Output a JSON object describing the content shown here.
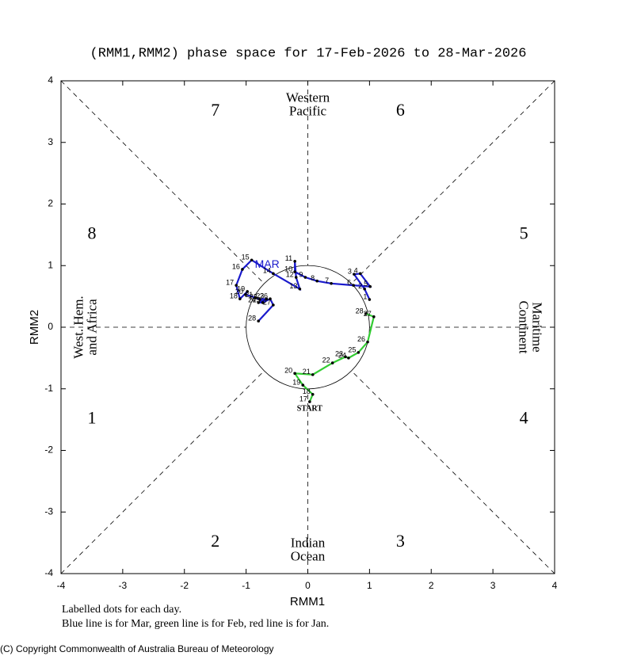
{
  "chart_data": {
    "type": "phase",
    "title": "(RMM1,RMM2) phase space for 17-Feb-2026 to 28-Mar-2026",
    "xlabel": "RMM1",
    "ylabel": "RMM2",
    "xlim": [
      -4,
      4
    ],
    "ylim": [
      -4,
      4
    ],
    "xticks": [
      -4,
      -3,
      -2,
      -1,
      0,
      1,
      2,
      3,
      4
    ],
    "yticks": [
      -4,
      -3,
      -2,
      -1,
      0,
      1,
      2,
      3,
      4
    ],
    "phases": [
      1,
      2,
      3,
      4,
      5,
      6,
      7,
      8
    ],
    "regions": {
      "top": [
        "Western",
        "Pacific"
      ],
      "bottom": [
        "Indian",
        "Ocean"
      ],
      "left": [
        "West. Hem.",
        "and Africa"
      ],
      "right": [
        "Maritime",
        "Continent"
      ]
    },
    "start_label": "START",
    "series": [
      {
        "color": "#33cc33",
        "days": [
          17,
          18,
          19,
          20,
          21,
          22,
          23,
          24,
          25,
          26,
          27,
          28
        ],
        "x": [
          0.03,
          0.08,
          -0.08,
          -0.21,
          0.08,
          0.4,
          0.61,
          0.66,
          0.82,
          0.97,
          1.07,
          0.94
        ],
        "y": [
          -1.21,
          -1.09,
          -0.94,
          -0.75,
          -0.77,
          -0.58,
          -0.48,
          -0.5,
          -0.41,
          -0.24,
          0.17,
          0.22
        ]
      },
      {
        "color": "#1a1acc",
        "month_label": "MAR",
        "days": [
          1,
          2,
          3,
          4,
          5,
          6,
          7,
          8,
          9,
          10,
          11,
          12,
          13,
          14,
          15,
          16,
          17,
          18,
          19,
          20,
          21,
          22,
          23,
          24,
          25,
          26,
          27,
          28
        ],
        "x": [
          1.0,
          0.92,
          0.75,
          0.85,
          1.01,
          0.74,
          0.38,
          0.15,
          -0.04,
          -0.21,
          -0.21,
          -0.19,
          -0.13,
          -0.56,
          -0.91,
          -1.06,
          -1.16,
          -1.1,
          -0.98,
          -1.01,
          -0.85,
          -0.78,
          -0.67,
          -0.8,
          -0.73,
          -0.61,
          -0.56,
          -0.8
        ],
        "y": [
          0.45,
          0.62,
          0.86,
          0.87,
          0.66,
          0.68,
          0.71,
          0.75,
          0.81,
          0.9,
          1.07,
          0.81,
          0.62,
          0.87,
          1.09,
          0.94,
          0.68,
          0.46,
          0.58,
          0.53,
          0.48,
          0.45,
          0.46,
          0.4,
          0.4,
          0.46,
          0.36,
          0.1
        ]
      }
    ],
    "notes": [
      "Labelled dots for each day.",
      "Blue line is for Mar, green line is for Feb, red line is for Jan."
    ],
    "copyright": "(C) Copyright Commonwealth of Australia Bureau of Meteorology"
  }
}
